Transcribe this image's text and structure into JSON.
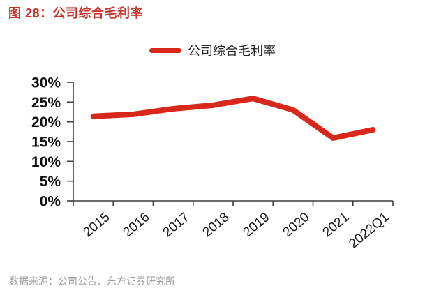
{
  "figure": {
    "title": "图 28：公司综合毛利率",
    "source": "数据来源：公司公告、东方证券研究所"
  },
  "legend": {
    "label": "公司综合毛利率"
  },
  "colors": {
    "title_red": "#c5352c",
    "line_red": "#d8281c",
    "axis": "#3d3d3d",
    "ytick_text": "#111111",
    "xtick_text": "#1a1a1a",
    "legend_text": "#262626",
    "source_text": "#9b9b9b"
  },
  "chart_data": {
    "type": "line",
    "title": "公司综合毛利率",
    "categories": [
      "2015",
      "2016",
      "2017",
      "2018",
      "2019",
      "2020",
      "2021",
      "2022Q1"
    ],
    "series": [
      {
        "name": "公司综合毛利率",
        "values": [
          21.4,
          21.9,
          23.3,
          24.2,
          25.9,
          23.0,
          15.9,
          18.0
        ]
      }
    ],
    "ylabel": "",
    "xlabel": "",
    "ylim": [
      0,
      30
    ],
    "ytick_step": 5,
    "ytick_labels_top_to_bottom": [
      "30%",
      "25%",
      "20%",
      "15%",
      "10%",
      "5%",
      "0%"
    ],
    "grid": false,
    "legend_position": "top-center",
    "unit": "percent"
  }
}
